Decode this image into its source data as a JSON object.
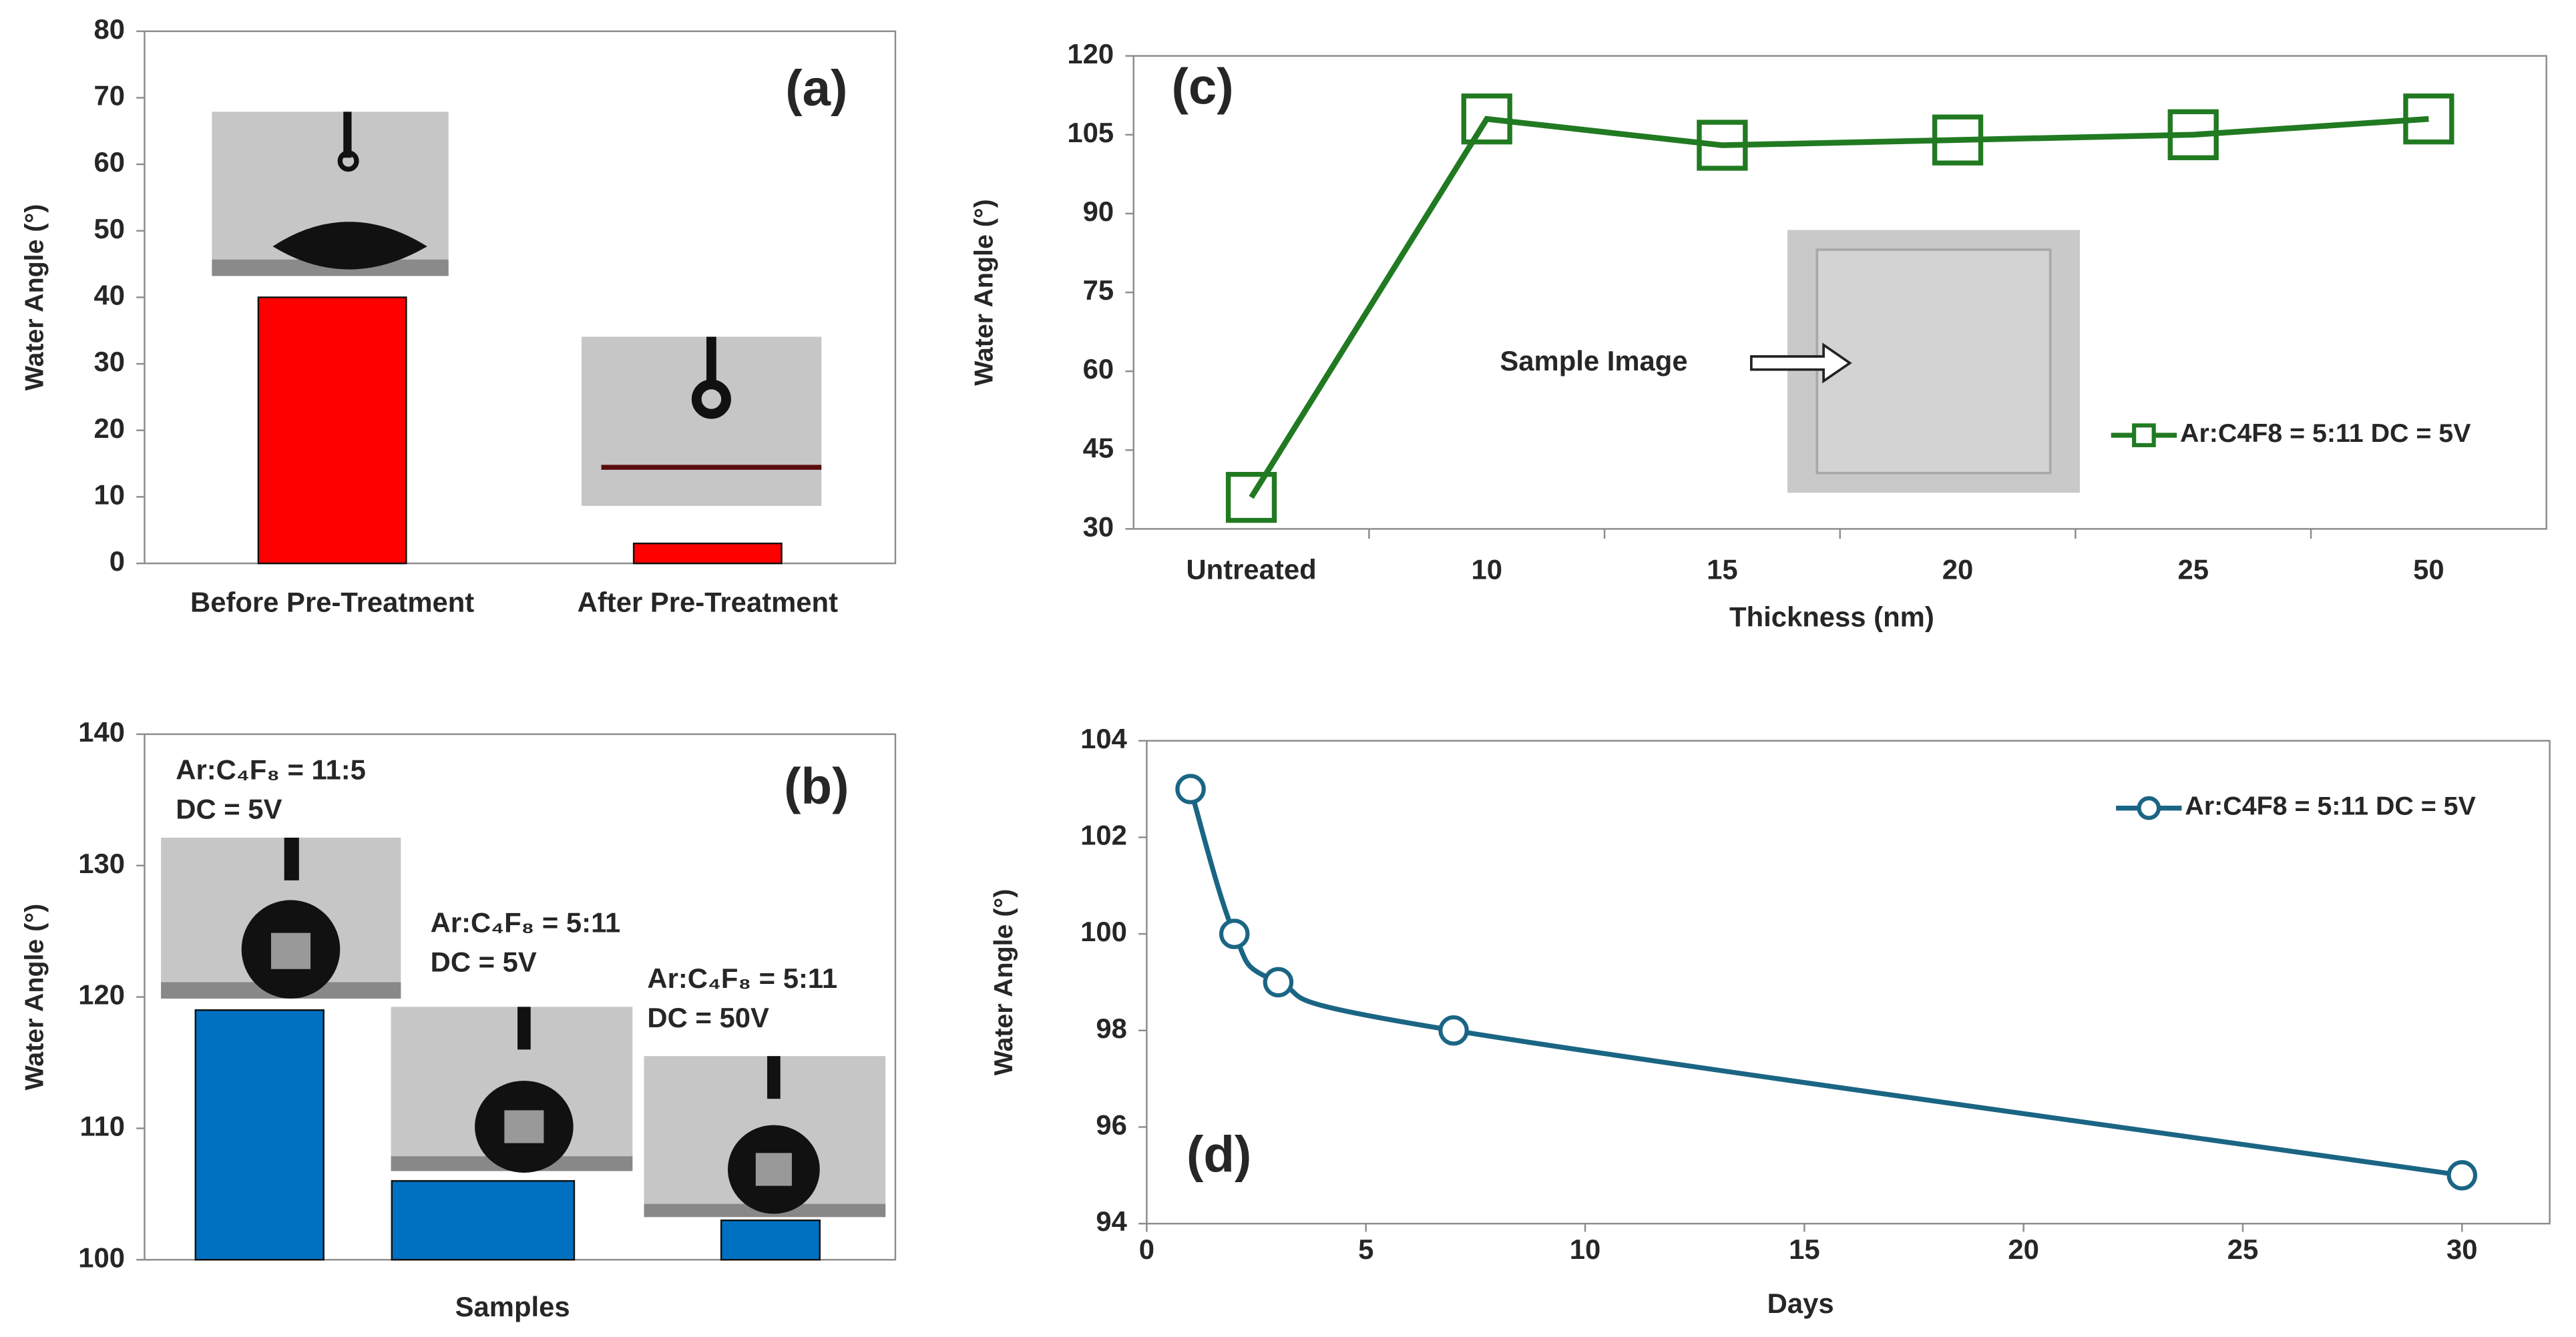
{
  "chart_data": [
    {
      "type": "bar",
      "ylabel": "Water Angle (°)",
      "annotation": "(a)",
      "categories": [
        "Before Pre-Treatment",
        "After Pre-Treatment"
      ],
      "values": [
        40,
        3
      ],
      "color": "#ff0000",
      "ylim": [
        0,
        80
      ],
      "yticks": [
        0,
        10,
        20,
        30,
        40,
        50,
        60,
        70,
        80
      ]
    },
    {
      "type": "bar",
      "ylabel": "Water Angle (°)",
      "xlabel": "Samples",
      "annotation": "(b)",
      "annotations": [
        "Ar:C₄F₈ = 11:5",
        "DC = 5V",
        "Ar:C₄F₈ = 5:11",
        "DC = 5V",
        "Ar:C₄F₈ = 5:11",
        "DC = 50V"
      ],
      "categories": [
        null,
        null,
        null
      ],
      "values": [
        119,
        106,
        103
      ],
      "color": "#0070c0",
      "ylim": [
        100,
        140
      ],
      "yticks": [
        100,
        110,
        120,
        130,
        140
      ]
    },
    {
      "type": "line",
      "ylabel": "Water Angle (°)",
      "xlabel": "Thickness (nm)",
      "annotation": "(c)",
      "image_label": "Sample Image",
      "categories": [
        "Untreated",
        "10",
        "15",
        "20",
        "25",
        "50"
      ],
      "series": [
        {
          "name": "Ar:C4F8 = 5:11 DC = 5V",
          "color": "#217a21",
          "values": [
            36,
            108,
            103,
            104,
            105,
            108
          ]
        }
      ],
      "ylim": [
        30,
        120
      ],
      "yticks": [
        30,
        45,
        60,
        75,
        90,
        105,
        120
      ]
    },
    {
      "type": "scatter",
      "ylabel": "Water Angle (°)",
      "xlabel": "Days",
      "annotation": "(d)",
      "x": [
        1,
        2,
        3,
        7,
        30
      ],
      "series": [
        {
          "name": "Ar:C4F8 = 5:11 DC = 5V",
          "color": "#1b6584",
          "values": [
            103,
            100,
            99,
            98,
            95
          ]
        }
      ],
      "xlim": [
        0,
        32
      ],
      "xticks": [
        0,
        5,
        10,
        15,
        20,
        25,
        30
      ],
      "ylim": [
        94,
        104
      ],
      "yticks": [
        94,
        96,
        98,
        100,
        102,
        104
      ]
    }
  ]
}
